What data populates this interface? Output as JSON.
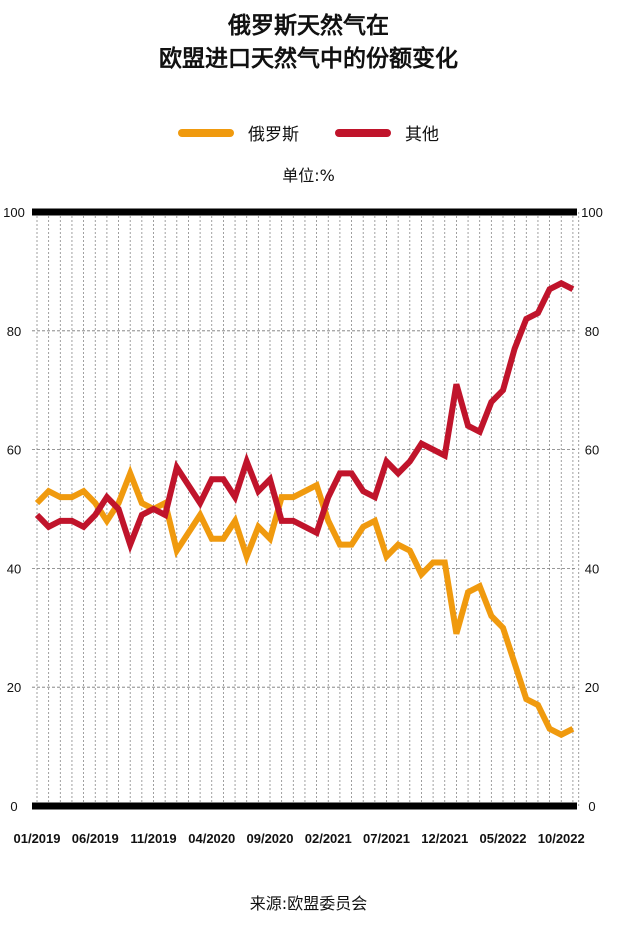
{
  "chart_data": {
    "type": "line",
    "title_line1": "俄罗斯天然气在",
    "title_line2": "欧盟进口天然气中的份额变化",
    "unit": "单位:%",
    "source": "来源:欧盟委员会",
    "xlabel": "",
    "ylabel": "",
    "ylim": [
      0,
      100
    ],
    "yticks": [
      "0",
      "20",
      "40",
      "60",
      "80",
      "100"
    ],
    "x_start": "01/2019",
    "x_end": "11/2022",
    "xticks": [
      "01/2019",
      "06/2019",
      "11/2019",
      "04/2020",
      "09/2020",
      "02/2021",
      "07/2021",
      "12/2021",
      "05/2022",
      "10/2022"
    ],
    "grid": true,
    "legend_position": "top-center",
    "series": [
      {
        "name": "俄罗斯",
        "color": "#F09A0E",
        "values": [
          51,
          53,
          52,
          52,
          53,
          51,
          48,
          51,
          56,
          51,
          50,
          51,
          43,
          46,
          49,
          45,
          45,
          48,
          42,
          47,
          45,
          52,
          52,
          53,
          54,
          48,
          44,
          44,
          47,
          48,
          42,
          44,
          43,
          39,
          41,
          41,
          29,
          36,
          37,
          32,
          30,
          24,
          18,
          17,
          13,
          12,
          13
        ]
      },
      {
        "name": "其他",
        "color": "#C0142B",
        "values": [
          49,
          47,
          48,
          48,
          47,
          49,
          52,
          50,
          44,
          49,
          50,
          49,
          57,
          54,
          51,
          55,
          55,
          52,
          58,
          53,
          55,
          48,
          48,
          47,
          46,
          52,
          56,
          56,
          53,
          52,
          58,
          56,
          58,
          61,
          60,
          59,
          71,
          64,
          63,
          68,
          70,
          77,
          82,
          83,
          87,
          88,
          87
        ]
      }
    ]
  }
}
